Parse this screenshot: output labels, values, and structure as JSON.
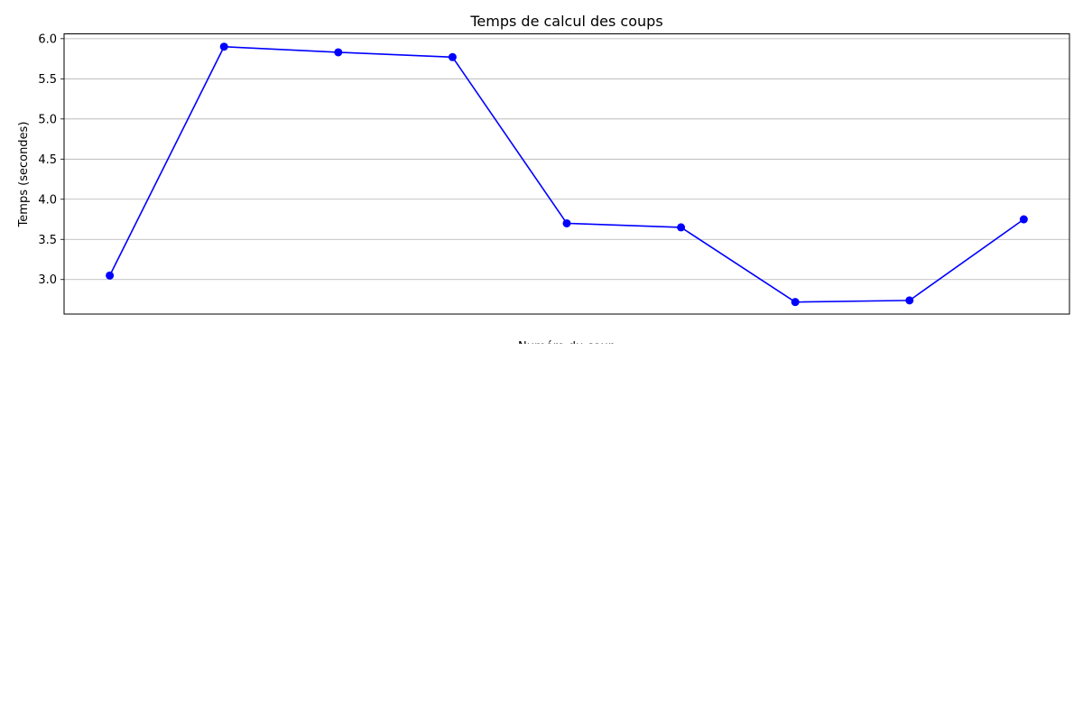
{
  "chart_data": {
    "type": "line",
    "title": "Temps de calcul des coups",
    "xlabel": "Numéro du coup",
    "ylabel": "Temps (secondes)",
    "x": [
      1,
      2,
      3,
      4,
      5,
      6,
      7,
      8,
      9
    ],
    "series": [
      {
        "values": [
          3.05,
          5.9,
          5.83,
          5.77,
          3.7,
          3.65,
          2.72,
          2.74,
          3.75
        ],
        "color": "#0000ff",
        "marker": "circle"
      }
    ],
    "yticks": [
      "3.0",
      "3.5",
      "4.0",
      "4.5",
      "5.0",
      "5.5",
      "6.0"
    ],
    "ylim": [
      2.57,
      6.06
    ],
    "xlim": [
      0.6,
      9.4
    ],
    "grid": "y",
    "legend": "none"
  }
}
